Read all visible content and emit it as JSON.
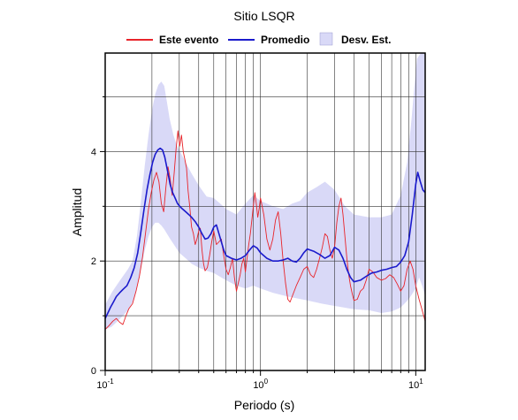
{
  "chart_data": {
    "type": "line",
    "title": "Sitio LSQR",
    "xlabel": "Periodo (s)",
    "ylabel": "Amplitud",
    "xscale": "log",
    "xlim": [
      0.1,
      11.5
    ],
    "ylim": [
      0,
      5.8
    ],
    "grid": true,
    "legend_placement": "top",
    "x_ticks": [
      {
        "value": 0.1,
        "base": "10",
        "exp": "-1"
      },
      {
        "value": 1,
        "base": "10",
        "exp": "0"
      },
      {
        "value": 10,
        "base": "10",
        "exp": "1"
      }
    ],
    "y_ticks": [
      0,
      2,
      4
    ],
    "y_tick_labels": [
      "0",
      "2",
      "4"
    ],
    "legend": [
      {
        "label": "Este evento",
        "kind": "line",
        "color": "#e8242a"
      },
      {
        "label": "Promedio",
        "kind": "line",
        "color": "#1a1acc"
      },
      {
        "label": "Desv. Est.",
        "kind": "band",
        "color": "#d9d9f7"
      }
    ],
    "series": [
      {
        "name": "Este evento",
        "color": "#e8242a",
        "points": [
          [
            0.1,
            0.75
          ],
          [
            0.106,
            0.82
          ],
          [
            0.112,
            0.9
          ],
          [
            0.118,
            0.95
          ],
          [
            0.124,
            0.88
          ],
          [
            0.13,
            0.84
          ],
          [
            0.136,
            1.0
          ],
          [
            0.142,
            1.13
          ],
          [
            0.15,
            1.22
          ],
          [
            0.158,
            1.45
          ],
          [
            0.166,
            1.72
          ],
          [
            0.174,
            2.08
          ],
          [
            0.182,
            2.52
          ],
          [
            0.19,
            2.95
          ],
          [
            0.198,
            3.25
          ],
          [
            0.206,
            3.48
          ],
          [
            0.214,
            3.62
          ],
          [
            0.222,
            3.45
          ],
          [
            0.23,
            3.05
          ],
          [
            0.238,
            2.9
          ],
          [
            0.246,
            3.35
          ],
          [
            0.254,
            3.72
          ],
          [
            0.262,
            3.5
          ],
          [
            0.27,
            3.2
          ],
          [
            0.278,
            3.6
          ],
          [
            0.286,
            4.05
          ],
          [
            0.294,
            4.38
          ],
          [
            0.302,
            4.1
          ],
          [
            0.31,
            4.3
          ],
          [
            0.318,
            4.0
          ],
          [
            0.326,
            3.85
          ],
          [
            0.334,
            3.7
          ],
          [
            0.342,
            3.28
          ],
          [
            0.35,
            3.0
          ],
          [
            0.36,
            2.62
          ],
          [
            0.37,
            2.5
          ],
          [
            0.38,
            2.3
          ],
          [
            0.39,
            2.4
          ],
          [
            0.4,
            2.55
          ],
          [
            0.41,
            2.6
          ],
          [
            0.42,
            2.2
          ],
          [
            0.43,
            1.95
          ],
          [
            0.44,
            1.82
          ],
          [
            0.455,
            1.88
          ],
          [
            0.47,
            2.1
          ],
          [
            0.485,
            2.35
          ],
          [
            0.5,
            2.55
          ],
          [
            0.52,
            2.3
          ],
          [
            0.54,
            2.35
          ],
          [
            0.56,
            2.4
          ],
          [
            0.58,
            2.1
          ],
          [
            0.6,
            1.85
          ],
          [
            0.62,
            1.75
          ],
          [
            0.64,
            1.88
          ],
          [
            0.66,
            2.05
          ],
          [
            0.68,
            1.7
          ],
          [
            0.7,
            1.45
          ],
          [
            0.72,
            1.6
          ],
          [
            0.74,
            1.75
          ],
          [
            0.76,
            1.95
          ],
          [
            0.78,
            2.05
          ],
          [
            0.8,
            1.8
          ],
          [
            0.82,
            2.05
          ],
          [
            0.84,
            2.3
          ],
          [
            0.86,
            2.5
          ],
          [
            0.88,
            2.75
          ],
          [
            0.9,
            3.0
          ],
          [
            0.92,
            3.25
          ],
          [
            0.94,
            3.05
          ],
          [
            0.96,
            2.8
          ],
          [
            0.98,
            2.95
          ],
          [
            1.0,
            3.15
          ],
          [
            1.05,
            2.85
          ],
          [
            1.1,
            2.4
          ],
          [
            1.15,
            2.2
          ],
          [
            1.2,
            2.4
          ],
          [
            1.25,
            2.75
          ],
          [
            1.3,
            2.9
          ],
          [
            1.35,
            2.5
          ],
          [
            1.4,
            2.0
          ],
          [
            1.45,
            1.6
          ],
          [
            1.5,
            1.3
          ],
          [
            1.55,
            1.25
          ],
          [
            1.6,
            1.35
          ],
          [
            1.7,
            1.55
          ],
          [
            1.8,
            1.7
          ],
          [
            1.9,
            1.85
          ],
          [
            2.0,
            1.9
          ],
          [
            2.1,
            1.75
          ],
          [
            2.2,
            1.7
          ],
          [
            2.3,
            1.85
          ],
          [
            2.4,
            2.05
          ],
          [
            2.5,
            2.25
          ],
          [
            2.6,
            2.5
          ],
          [
            2.7,
            2.45
          ],
          [
            2.8,
            2.2
          ],
          [
            2.9,
            2.05
          ],
          [
            3.0,
            2.25
          ],
          [
            3.1,
            2.7
          ],
          [
            3.2,
            3.0
          ],
          [
            3.3,
            3.15
          ],
          [
            3.4,
            2.85
          ],
          [
            3.5,
            2.45
          ],
          [
            3.6,
            2.05
          ],
          [
            3.7,
            1.75
          ],
          [
            3.8,
            1.55
          ],
          [
            3.9,
            1.4
          ],
          [
            4.0,
            1.28
          ],
          [
            4.2,
            1.3
          ],
          [
            4.4,
            1.45
          ],
          [
            4.6,
            1.5
          ],
          [
            4.8,
            1.65
          ],
          [
            5.0,
            1.85
          ],
          [
            5.3,
            1.8
          ],
          [
            5.6,
            1.7
          ],
          [
            6.0,
            1.65
          ],
          [
            6.4,
            1.68
          ],
          [
            6.8,
            1.75
          ],
          [
            7.2,
            1.7
          ],
          [
            7.6,
            1.58
          ],
          [
            8.0,
            1.45
          ],
          [
            8.4,
            1.55
          ],
          [
            8.8,
            1.85
          ],
          [
            9.2,
            2.0
          ],
          [
            9.6,
            1.85
          ],
          [
            10.0,
            1.55
          ],
          [
            10.5,
            1.3
          ],
          [
            11.0,
            1.1
          ],
          [
            11.5,
            0.9
          ]
        ]
      },
      {
        "name": "Promedio",
        "color": "#1a1acc",
        "points": [
          [
            0.1,
            0.95
          ],
          [
            0.104,
            1.05
          ],
          [
            0.108,
            1.15
          ],
          [
            0.113,
            1.25
          ],
          [
            0.118,
            1.35
          ],
          [
            0.124,
            1.42
          ],
          [
            0.13,
            1.48
          ],
          [
            0.138,
            1.55
          ],
          [
            0.146,
            1.7
          ],
          [
            0.154,
            1.88
          ],
          [
            0.162,
            2.15
          ],
          [
            0.17,
            2.55
          ],
          [
            0.178,
            2.95
          ],
          [
            0.186,
            3.3
          ],
          [
            0.194,
            3.58
          ],
          [
            0.202,
            3.8
          ],
          [
            0.21,
            3.95
          ],
          [
            0.218,
            4.03
          ],
          [
            0.226,
            4.06
          ],
          [
            0.234,
            4.03
          ],
          [
            0.242,
            3.9
          ],
          [
            0.252,
            3.65
          ],
          [
            0.262,
            3.4
          ],
          [
            0.272,
            3.25
          ],
          [
            0.282,
            3.15
          ],
          [
            0.292,
            3.05
          ],
          [
            0.302,
            3.0
          ],
          [
            0.315,
            2.95
          ],
          [
            0.33,
            2.9
          ],
          [
            0.345,
            2.85
          ],
          [
            0.36,
            2.8
          ],
          [
            0.38,
            2.72
          ],
          [
            0.4,
            2.62
          ],
          [
            0.42,
            2.5
          ],
          [
            0.44,
            2.4
          ],
          [
            0.46,
            2.42
          ],
          [
            0.48,
            2.5
          ],
          [
            0.5,
            2.62
          ],
          [
            0.52,
            2.66
          ],
          [
            0.54,
            2.5
          ],
          [
            0.56,
            2.35
          ],
          [
            0.58,
            2.2
          ],
          [
            0.6,
            2.1
          ],
          [
            0.65,
            2.05
          ],
          [
            0.7,
            2.02
          ],
          [
            0.75,
            2.05
          ],
          [
            0.8,
            2.1
          ],
          [
            0.85,
            2.2
          ],
          [
            0.9,
            2.28
          ],
          [
            0.95,
            2.24
          ],
          [
            1.0,
            2.15
          ],
          [
            1.1,
            2.05
          ],
          [
            1.2,
            2.0
          ],
          [
            1.3,
            2.0
          ],
          [
            1.4,
            2.02
          ],
          [
            1.5,
            2.05
          ],
          [
            1.6,
            2.0
          ],
          [
            1.7,
            1.98
          ],
          [
            1.8,
            2.05
          ],
          [
            1.9,
            2.15
          ],
          [
            2.0,
            2.22
          ],
          [
            2.2,
            2.18
          ],
          [
            2.4,
            2.12
          ],
          [
            2.6,
            2.05
          ],
          [
            2.8,
            2.1
          ],
          [
            3.0,
            2.25
          ],
          [
            3.2,
            2.2
          ],
          [
            3.4,
            2.05
          ],
          [
            3.6,
            1.85
          ],
          [
            3.8,
            1.7
          ],
          [
            4.0,
            1.62
          ],
          [
            4.4,
            1.65
          ],
          [
            4.8,
            1.72
          ],
          [
            5.2,
            1.78
          ],
          [
            5.6,
            1.8
          ],
          [
            6.0,
            1.83
          ],
          [
            6.5,
            1.85
          ],
          [
            7.0,
            1.88
          ],
          [
            7.5,
            1.9
          ],
          [
            8.0,
            1.98
          ],
          [
            8.5,
            2.1
          ],
          [
            9.0,
            2.35
          ],
          [
            9.5,
            2.85
          ],
          [
            10.0,
            3.4
          ],
          [
            10.3,
            3.62
          ],
          [
            10.7,
            3.45
          ],
          [
            11.1,
            3.3
          ],
          [
            11.5,
            3.25
          ]
        ]
      },
      {
        "name": "Desv. Est.",
        "color": "#d9d9f7",
        "points_upper": [
          [
            0.1,
            1.2
          ],
          [
            0.11,
            1.42
          ],
          [
            0.12,
            1.58
          ],
          [
            0.13,
            1.72
          ],
          [
            0.14,
            1.85
          ],
          [
            0.15,
            2.0
          ],
          [
            0.16,
            2.45
          ],
          [
            0.17,
            3.1
          ],
          [
            0.18,
            3.75
          ],
          [
            0.19,
            4.3
          ],
          [
            0.2,
            4.75
          ],
          [
            0.21,
            5.05
          ],
          [
            0.22,
            5.22
          ],
          [
            0.23,
            5.28
          ],
          [
            0.24,
            5.2
          ],
          [
            0.25,
            4.9
          ],
          [
            0.26,
            4.6
          ],
          [
            0.275,
            4.3
          ],
          [
            0.29,
            4.1
          ],
          [
            0.31,
            3.95
          ],
          [
            0.33,
            3.8
          ],
          [
            0.36,
            3.6
          ],
          [
            0.4,
            3.38
          ],
          [
            0.45,
            3.18
          ],
          [
            0.5,
            3.15
          ],
          [
            0.55,
            3.05
          ],
          [
            0.6,
            2.95
          ],
          [
            0.7,
            2.85
          ],
          [
            0.8,
            3.05
          ],
          [
            0.9,
            3.2
          ],
          [
            1.0,
            3.1
          ],
          [
            1.2,
            3.0
          ],
          [
            1.4,
            2.95
          ],
          [
            1.6,
            3.05
          ],
          [
            1.8,
            3.1
          ],
          [
            2.0,
            3.25
          ],
          [
            2.3,
            3.35
          ],
          [
            2.6,
            3.45
          ],
          [
            3.0,
            3.3
          ],
          [
            3.5,
            3.0
          ],
          [
            4.0,
            2.85
          ],
          [
            5.0,
            2.8
          ],
          [
            6.0,
            2.8
          ],
          [
            7.0,
            2.85
          ],
          [
            8.0,
            3.2
          ],
          [
            8.8,
            3.8
          ],
          [
            9.4,
            4.6
          ],
          [
            9.8,
            5.2
          ],
          [
            10.2,
            5.7
          ],
          [
            10.8,
            5.8
          ],
          [
            11.5,
            5.8
          ]
        ],
        "points_lower": [
          [
            0.1,
            0.75
          ],
          [
            0.11,
            0.8
          ],
          [
            0.12,
            0.9
          ],
          [
            0.13,
            1.0
          ],
          [
            0.14,
            1.1
          ],
          [
            0.15,
            1.25
          ],
          [
            0.16,
            1.5
          ],
          [
            0.17,
            1.85
          ],
          [
            0.18,
            2.2
          ],
          [
            0.19,
            2.45
          ],
          [
            0.2,
            2.62
          ],
          [
            0.21,
            2.7
          ],
          [
            0.22,
            2.7
          ],
          [
            0.23,
            2.65
          ],
          [
            0.24,
            2.58
          ],
          [
            0.26,
            2.42
          ],
          [
            0.28,
            2.28
          ],
          [
            0.3,
            2.15
          ],
          [
            0.33,
            2.05
          ],
          [
            0.36,
            1.95
          ],
          [
            0.4,
            1.88
          ],
          [
            0.45,
            1.82
          ],
          [
            0.5,
            1.78
          ],
          [
            0.6,
            1.65
          ],
          [
            0.7,
            1.55
          ],
          [
            0.8,
            1.5
          ],
          [
            0.9,
            1.55
          ],
          [
            1.0,
            1.5
          ],
          [
            1.2,
            1.42
          ],
          [
            1.5,
            1.35
          ],
          [
            2.0,
            1.28
          ],
          [
            2.5,
            1.22
          ],
          [
            3.0,
            1.18
          ],
          [
            4.0,
            1.12
          ],
          [
            5.0,
            1.1
          ],
          [
            6.0,
            1.05
          ],
          [
            7.0,
            1.08
          ],
          [
            8.0,
            1.15
          ],
          [
            9.0,
            1.3
          ],
          [
            10.0,
            1.5
          ],
          [
            10.5,
            1.7
          ],
          [
            11.0,
            1.55
          ],
          [
            11.5,
            1.35
          ]
        ]
      }
    ]
  }
}
